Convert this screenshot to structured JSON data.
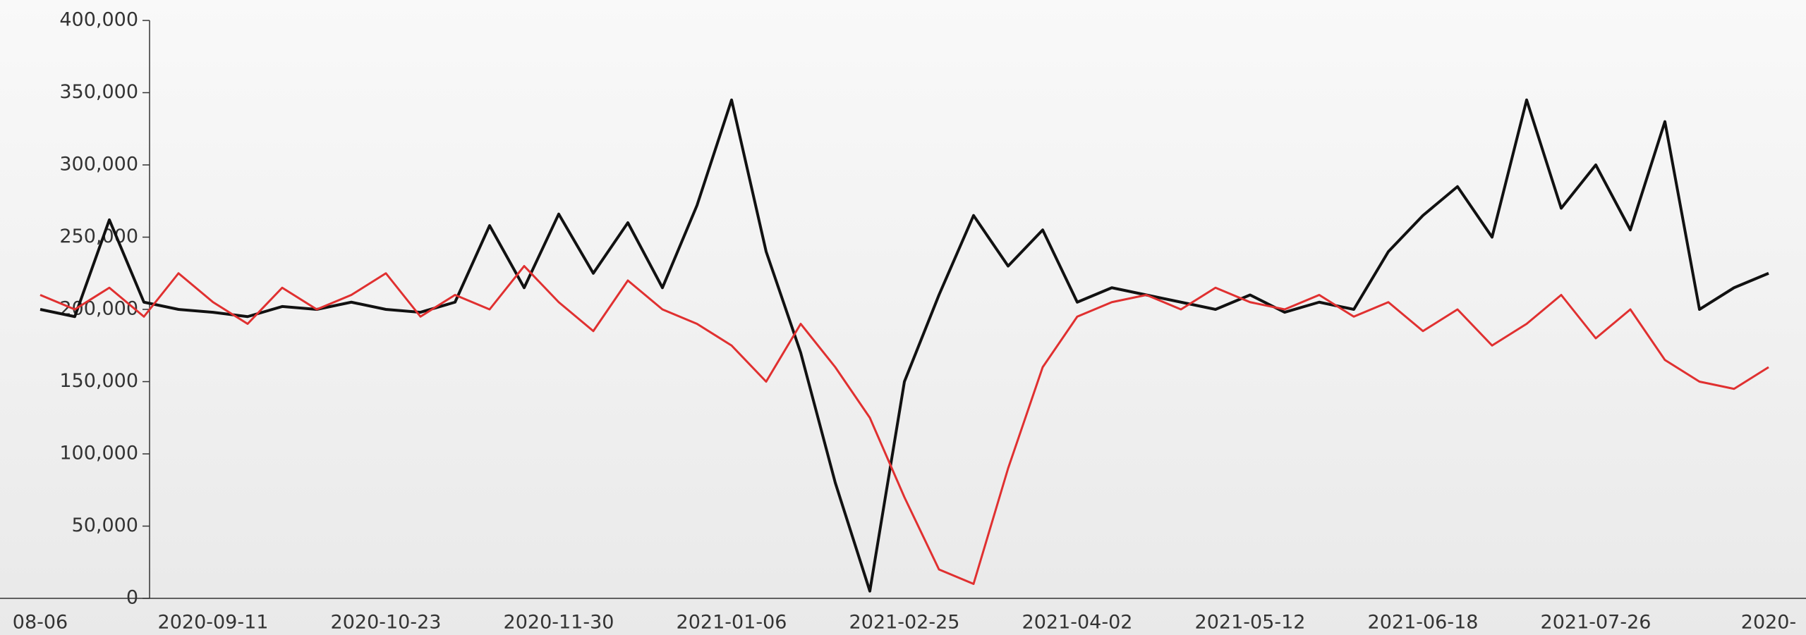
{
  "chart_data": {
    "type": "line",
    "categories": [
      "08-06",
      null,
      null,
      null,
      null,
      "2020-09-11",
      null,
      null,
      null,
      null,
      "2020-10-23",
      null,
      null,
      null,
      null,
      "2020-11-30",
      null,
      null,
      null,
      null,
      "2021-01-06",
      null,
      null,
      null,
      null,
      "2021-02-25",
      null,
      null,
      null,
      null,
      "2021-04-02",
      null,
      null,
      null,
      null,
      "2021-05-12",
      null,
      null,
      null,
      null,
      "2021-06-18",
      null,
      null,
      null,
      null,
      "2021-07-26",
      null,
      null,
      null,
      null,
      "2020-"
    ],
    "series": [
      {
        "color": "#111111",
        "values": [
          200000,
          195000,
          262000,
          205000,
          200000,
          198000,
          195000,
          202000,
          200000,
          205000,
          200000,
          198000,
          205000,
          258000,
          215000,
          266000,
          225000,
          260000,
          215000,
          272000,
          345000,
          240000,
          170000,
          80000,
          5000,
          150000,
          210000,
          265000,
          230000,
          255000,
          205000,
          215000,
          210000,
          205000,
          200000,
          210000,
          198000,
          205000,
          200000,
          240000,
          265000,
          285000,
          250000,
          345000,
          270000,
          300000,
          255000,
          330000,
          200000,
          215000,
          225000
        ]
      },
      {
        "color": "#e03030",
        "values": [
          210000,
          200000,
          215000,
          195000,
          225000,
          205000,
          190000,
          215000,
          200000,
          210000,
          225000,
          195000,
          210000,
          200000,
          230000,
          205000,
          185000,
          220000,
          200000,
          190000,
          175000,
          150000,
          190000,
          160000,
          125000,
          70000,
          20000,
          10000,
          90000,
          160000,
          195000,
          205000,
          210000,
          200000,
          215000,
          205000,
          200000,
          210000,
          195000,
          205000,
          185000,
          200000,
          175000,
          190000,
          210000,
          180000,
          200000,
          165000,
          150000,
          145000,
          160000
        ]
      }
    ],
    "ylim": [
      0,
      400000
    ],
    "yticks": [
      {
        "value": 0,
        "label": "0"
      },
      {
        "value": 50000,
        "label": "50,000"
      },
      {
        "value": 100000,
        "label": "100,000"
      },
      {
        "value": 150000,
        "label": "150,000"
      },
      {
        "value": 200000,
        "label": "200,000"
      },
      {
        "value": 250000,
        "label": "250,000"
      },
      {
        "value": 300000,
        "label": "300,000"
      },
      {
        "value": 350000,
        "label": "350,000"
      },
      {
        "value": 400000,
        "label": "400,000"
      }
    ]
  }
}
